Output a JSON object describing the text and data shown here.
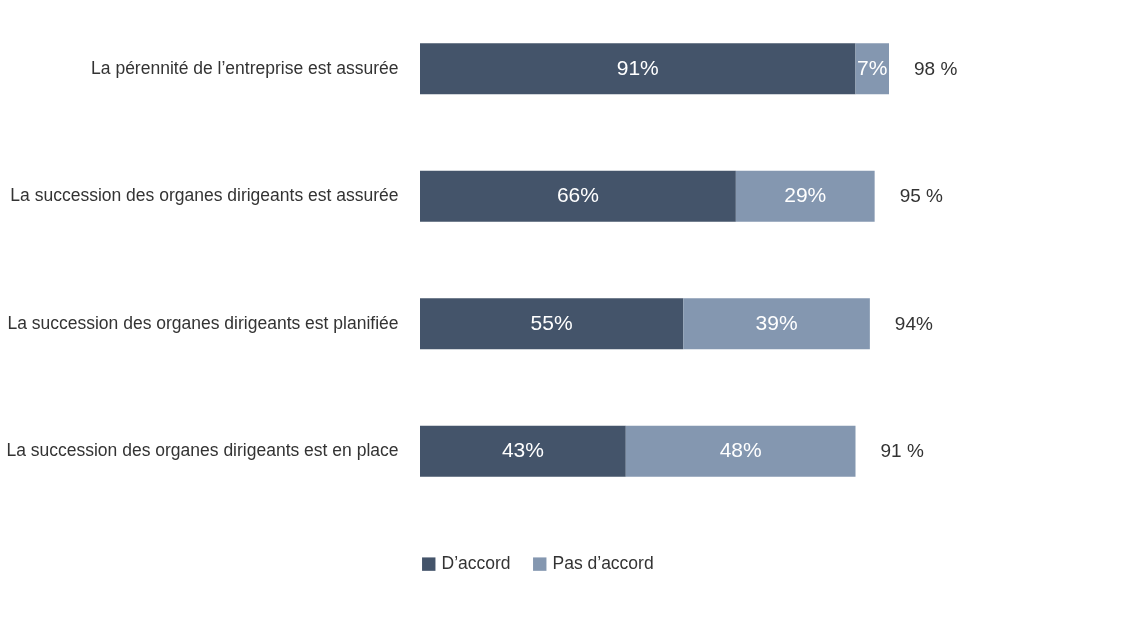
{
  "chart_data": {
    "type": "bar",
    "orientation": "horizontal",
    "stacked": true,
    "categories": [
      "La pérennité de l’entreprise est assurée",
      "La succession des organes dirigeants est assurée",
      "La succession des organes dirigeants est planifiée",
      "La succession des organes dirigeants est en place"
    ],
    "series": [
      {
        "name": "D’accord",
        "color": "#44546a",
        "values": [
          91,
          66,
          55,
          43
        ],
        "value_labels": [
          "91%",
          "66%",
          "55%",
          "43%"
        ]
      },
      {
        "name": "Pas d’accord",
        "color": "#8497b0",
        "values": [
          7,
          29,
          39,
          48
        ],
        "value_labels": [
          "7%",
          "29%",
          "39%",
          "48%"
        ]
      }
    ],
    "totals": [
      "98 %",
      "95 %",
      "94%",
      "91 %"
    ],
    "tick_labels": "y",
    "grid": false,
    "legend": "bottom"
  }
}
